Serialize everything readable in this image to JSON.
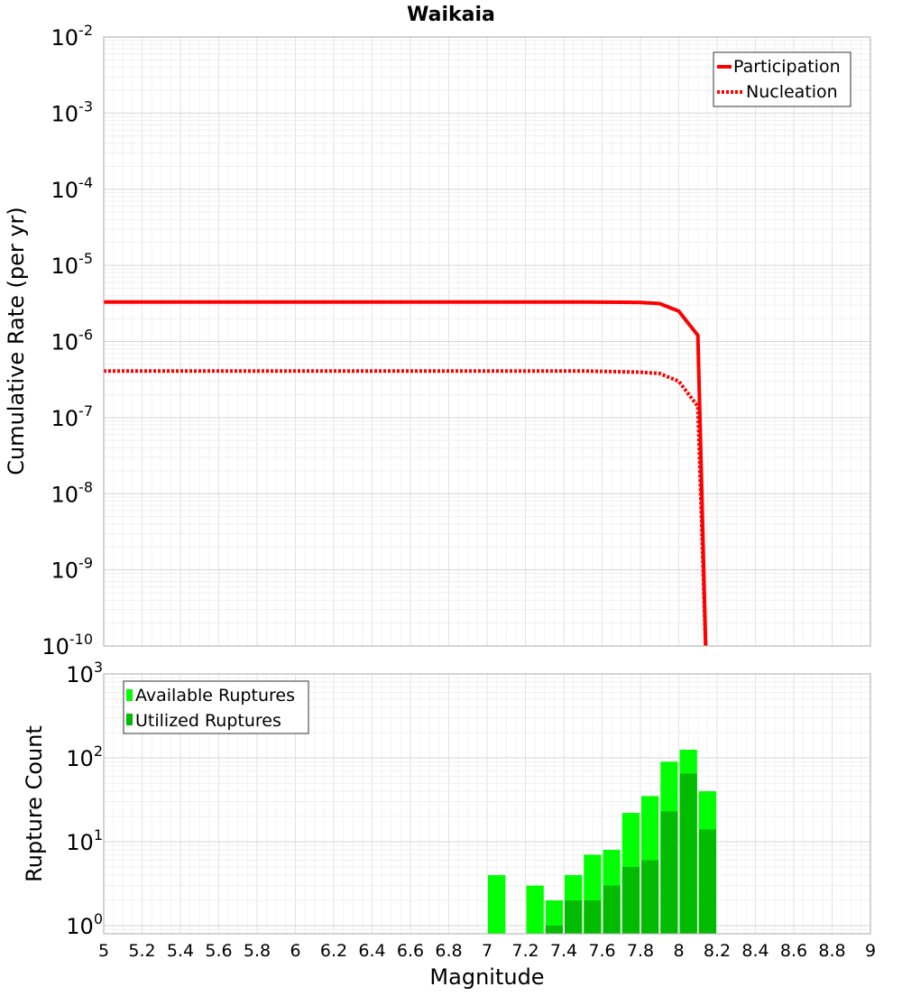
{
  "chart_data": [
    {
      "type": "line",
      "title": "Waikaia",
      "xlabel": "",
      "ylabel": "Cumulative Rate (per yr)",
      "yscale": "log",
      "xlim": [
        5,
        9
      ],
      "ylim": [
        1e-10,
        0.01
      ],
      "y_tick_base": "10",
      "y_tick_exponents": [
        "-10",
        "-9",
        "-8",
        "-7",
        "-6",
        "-5",
        "-4",
        "-3",
        "-2"
      ],
      "legend": "top-right",
      "grid": true,
      "series": [
        {
          "name": "Participation",
          "style": "solid",
          "color": "#ff0000",
          "x": [
            5.0,
            5.5,
            6.0,
            6.5,
            7.0,
            7.5,
            7.7,
            7.8,
            7.9,
            8.0,
            8.1,
            8.14
          ],
          "y": [
            3.3e-06,
            3.3e-06,
            3.3e-06,
            3.3e-06,
            3.3e-06,
            3.3e-06,
            3.28e-06,
            3.25e-06,
            3.15e-06,
            2.5e-06,
            1.2e-06,
            1e-10
          ]
        },
        {
          "name": "Nucleation",
          "style": "dotted",
          "color": "#ff0000",
          "x": [
            5.0,
            5.5,
            6.0,
            6.5,
            7.0,
            7.5,
            7.7,
            7.8,
            7.9,
            8.0,
            8.1,
            8.14
          ],
          "y": [
            4.1e-07,
            4.1e-07,
            4.1e-07,
            4.1e-07,
            4.1e-07,
            4.1e-07,
            4e-07,
            3.95e-07,
            3.8e-07,
            3e-07,
            1.4e-07,
            1e-10
          ]
        }
      ]
    },
    {
      "type": "bar",
      "title": "",
      "xlabel": "Magnitude",
      "ylabel": "Rupture Count",
      "yscale": "log",
      "xlim": [
        5,
        9
      ],
      "ylim": [
        0.8,
        1000
      ],
      "x_ticks": [
        "5",
        "5.2",
        "5.4",
        "5.6",
        "5.8",
        "6",
        "6.2",
        "6.4",
        "6.6",
        "6.8",
        "7",
        "7.2",
        "7.4",
        "7.6",
        "7.8",
        "8",
        "8.2",
        "8.4",
        "8.6",
        "8.8",
        "9"
      ],
      "y_tick_base": "10",
      "y_tick_exponents": [
        "0",
        "1",
        "2",
        "3"
      ],
      "legend": "top-left",
      "grid": true,
      "bin_width": 0.1,
      "series": [
        {
          "name": "Available Ruptures",
          "color": "#00ff00",
          "x": [
            7.05,
            7.25,
            7.35,
            7.45,
            7.55,
            7.65,
            7.75,
            7.85,
            7.95,
            8.05,
            8.15
          ],
          "values": [
            4,
            3,
            2,
            4,
            7,
            8,
            22,
            35,
            90,
            125,
            40
          ]
        },
        {
          "name": "Utilized Ruptures",
          "color": "#00bb00",
          "x": [
            7.35,
            7.45,
            7.55,
            7.65,
            7.75,
            7.85,
            7.95,
            8.05,
            8.15
          ],
          "values": [
            1,
            2,
            2,
            3,
            5,
            6,
            23,
            65,
            14
          ]
        }
      ]
    }
  ]
}
